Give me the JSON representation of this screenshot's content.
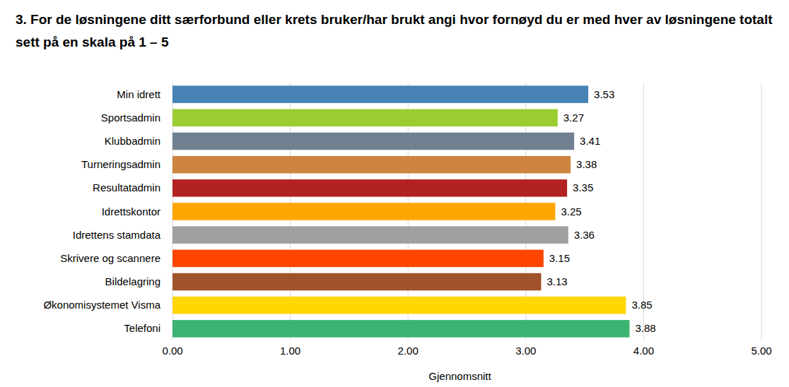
{
  "chart_data": {
    "type": "bar",
    "orientation": "horizontal",
    "title": "3. For de løsningene ditt særforbund eller krets bruker/har brukt angi hvor fornøyd du er med hver av løsningene totalt sett på en skala på 1 – 5",
    "x_label": "Gjennomsnitt",
    "categories": [
      "Min idrett",
      "Sportsadmin",
      "Klubbadmin",
      "Turneringsadmin",
      "Resultatadmin",
      "Idrettskontor",
      "Idrettens stamdata",
      "Skrivere og scannere",
      "Bildelagring",
      "Økonomisystemet Visma",
      "Telefoni"
    ],
    "values": [
      3.53,
      3.27,
      3.41,
      3.38,
      3.35,
      3.25,
      3.36,
      3.15,
      3.13,
      3.85,
      3.88
    ],
    "colors": [
      "#4682b4",
      "#9acd32",
      "#708090",
      "#cd853f",
      "#b22222",
      "#ffa500",
      "#a0a0a0",
      "#ff4500",
      "#a0522d",
      "#ffd700",
      "#3cb371"
    ],
    "xlim": [
      0,
      5
    ],
    "xticks": [
      {
        "value": 0,
        "label": "0.00"
      },
      {
        "value": 1,
        "label": "1.00"
      },
      {
        "value": 2,
        "label": "2.00"
      },
      {
        "value": 3,
        "label": "3.00"
      },
      {
        "value": 4,
        "label": "4.00"
      },
      {
        "value": 5,
        "label": "5.00"
      }
    ],
    "grid": true,
    "data_labels": true
  }
}
